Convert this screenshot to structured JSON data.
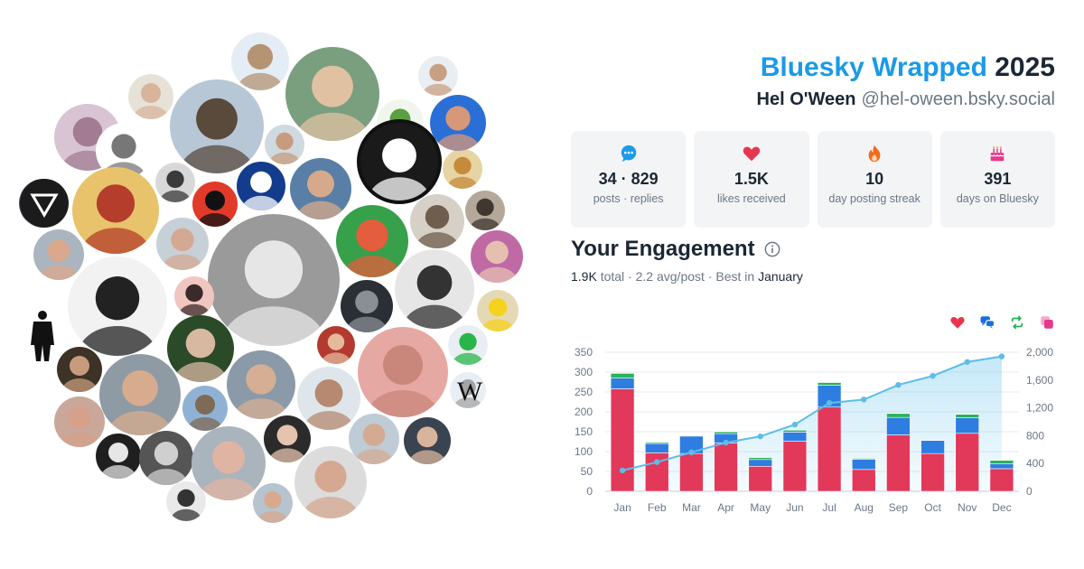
{
  "header": {
    "title_brand": "Bluesky Wrapped",
    "title_year": "2025",
    "display_name": "Hel O'Ween",
    "handle": "@hel-oween.bsky.social"
  },
  "stats": [
    {
      "value": "34 · 829",
      "label": "posts · replies",
      "icon": "speech-bubble-icon",
      "color": "#1a9be6"
    },
    {
      "value": "1.5K",
      "label": "likes received",
      "icon": "heart-icon",
      "color": "#e8364f"
    },
    {
      "value": "10",
      "label": "day posting streak",
      "icon": "flame-icon",
      "color": "#f26b1d"
    },
    {
      "value": "391",
      "label": "days on Bluesky",
      "icon": "cake-icon",
      "color": "#e6398a"
    }
  ],
  "engagement": {
    "title": "Your Engagement",
    "total_value": "1.9K",
    "total_word": "total",
    "avg": "2.2 avg/post",
    "best_prefix": "Best in",
    "best_month": "January"
  },
  "legend_icons": [
    {
      "icon": "heart-icon",
      "color": "#e8364f"
    },
    {
      "icon": "reply-bubbles-icon",
      "color": "#1a6fe0"
    },
    {
      "icon": "repost-icon",
      "color": "#22b456"
    },
    {
      "icon": "quote-icon",
      "color": "#e6398a"
    }
  ],
  "chart_data": {
    "type": "bar",
    "stacked": true,
    "categories": [
      "Jan",
      "Feb",
      "Mar",
      "Apr",
      "May",
      "Jun",
      "Jul",
      "Aug",
      "Sep",
      "Oct",
      "Nov",
      "Dec"
    ],
    "series": [
      {
        "color": "#e2385a",
        "values": [
          258,
          97,
          95,
          122,
          63,
          126,
          212,
          55,
          142,
          95,
          146,
          57
        ]
      },
      {
        "color": "#2e7de1",
        "values": [
          27,
          23,
          44,
          23,
          17,
          23,
          55,
          26,
          44,
          33,
          39,
          12
        ]
      },
      {
        "color": "#27b359",
        "values": [
          12,
          3,
          1,
          5,
          5,
          5,
          7,
          2,
          10,
          1,
          9,
          9
        ]
      },
      {
        "color": "#e6398a",
        "values": [
          1,
          0,
          0,
          1,
          0,
          1,
          1,
          0,
          1,
          0,
          1,
          1
        ]
      }
    ],
    "line": {
      "color": "#5dbde8",
      "values": [
        300,
        420,
        560,
        700,
        790,
        960,
        1270,
        1320,
        1530,
        1660,
        1860,
        1940
      ]
    },
    "ylim_left": [
      0,
      350
    ],
    "yticks_left": [
      "0",
      "50",
      "100",
      "150",
      "200",
      "250",
      "300",
      "350"
    ],
    "ylim_right": [
      0,
      2000
    ],
    "yticks_right": [
      "0",
      "400",
      "800",
      "1,200",
      "1,600",
      "2,000"
    ],
    "grid": true
  },
  "avatars": [
    {
      "color": "#e4ecf5",
      "fg": "#b59474"
    },
    {
      "color": "#7a9f7e",
      "fg": "#e0c2a3"
    },
    {
      "color": "#e8eef2",
      "fg": "#c99f84"
    },
    {
      "color": "#e7e2d8",
      "fg": "#d8b49a"
    },
    {
      "color": "#d8c4d2",
      "fg": "#a37c94"
    },
    {
      "color": "#b8c7d6",
      "fg": "#5a4a3c"
    },
    {
      "color": "#e7d4a3",
      "fg": "#c68a3b"
    },
    {
      "color": "#3e6c48",
      "fg": "#d6b297"
    },
    {
      "color": "#f1f6ec",
      "fg": "#5aa041"
    },
    {
      "color": "#2a6fd6",
      "fg": "#d79779"
    },
    {
      "color": "#cfd9e0",
      "fg": "#c89b7e"
    },
    {
      "color": "#1a1a1a",
      "fg": "#ffffff"
    },
    {
      "color": "#ffffff",
      "fg": "#777777"
    },
    {
      "color": "#d8d8d8",
      "fg": "#3a3a3a"
    },
    {
      "color": "#e8c36b",
      "fg": "#b43d2b"
    },
    {
      "color": "#e13a2a",
      "fg": "#111111"
    },
    {
      "color": "#143c8c",
      "fg": "#ffffff"
    },
    {
      "color": "#5a7fa6",
      "fg": "#d6a98a"
    },
    {
      "color": "#d7d0c6",
      "fg": "#6f5d4e"
    },
    {
      "color": "#b3a89a",
      "fg": "#403730"
    },
    {
      "color": "#44536a",
      "fg": "#bfb1a2"
    },
    {
      "color": "#37a04a",
      "fg": "#e45d3c"
    },
    {
      "color": "#aab5c0",
      "fg": "#d9a88d"
    },
    {
      "color": "#c7cfd7",
      "fg": "#d4a993"
    },
    {
      "color": "#c06aa5",
      "fg": "#e5c0b1"
    },
    {
      "color": "#9a9a9a",
      "fg": "#e6e6e6"
    },
    {
      "color": "#f2f2f2",
      "fg": "#222222"
    },
    {
      "color": "#f2c6c0",
      "fg": "#3a2a2a"
    },
    {
      "color": "#e6e6e6",
      "fg": "#333333"
    },
    {
      "color": "#2a2f36",
      "fg": "#8a8f96"
    },
    {
      "color": "#e5d9b5",
      "fg": "#f5d21e"
    },
    {
      "color": "#b23a2e",
      "fg": "#e6b89c"
    },
    {
      "color": "#e6a8a3",
      "fg": "#c9867a"
    },
    {
      "color": "#2a4a28",
      "fg": "#d7b8a1"
    },
    {
      "color": "#e8eef3",
      "fg": "#2ab54a"
    },
    {
      "color": "#3d3226",
      "fg": "#c69c7d"
    },
    {
      "color": "#8e9aa4",
      "fg": "#d7ac8e"
    },
    {
      "color": "#8a9aa8",
      "fg": "#d5ae93"
    },
    {
      "color": "#dfe6eb",
      "fg": "#b58a70"
    },
    {
      "color": "#8fb2d4",
      "fg": "#7e6a56"
    },
    {
      "color": "#c9a79a",
      "fg": "#d6a08a"
    },
    {
      "color": "#3a4450",
      "fg": "#d9b49c"
    },
    {
      "color": "#bfcbd5",
      "fg": "#d4ab92"
    },
    {
      "color": "#1f1f1f",
      "fg": "#e6e6e6"
    },
    {
      "color": "#555555",
      "fg": "#cfcfcf"
    },
    {
      "color": "#aab4bd",
      "fg": "#e0b4a2"
    },
    {
      "color": "#2b2b2b",
      "fg": "#e6c3ad"
    },
    {
      "color": "#dcdcdc",
      "fg": "#d6a892"
    },
    {
      "color": "#e9e9e9",
      "fg": "#333333"
    },
    {
      "color": "#b6c4cf",
      "fg": "#d7aa8f"
    },
    {
      "color": "#e8eef3",
      "fg": "#a5a5a5"
    },
    {
      "color": "#c7cdd3",
      "fg": "#a7866f"
    },
    {
      "color": "#ffffff",
      "fg": "#111111"
    },
    {
      "color": "#ffffff",
      "fg": "#111111"
    }
  ]
}
